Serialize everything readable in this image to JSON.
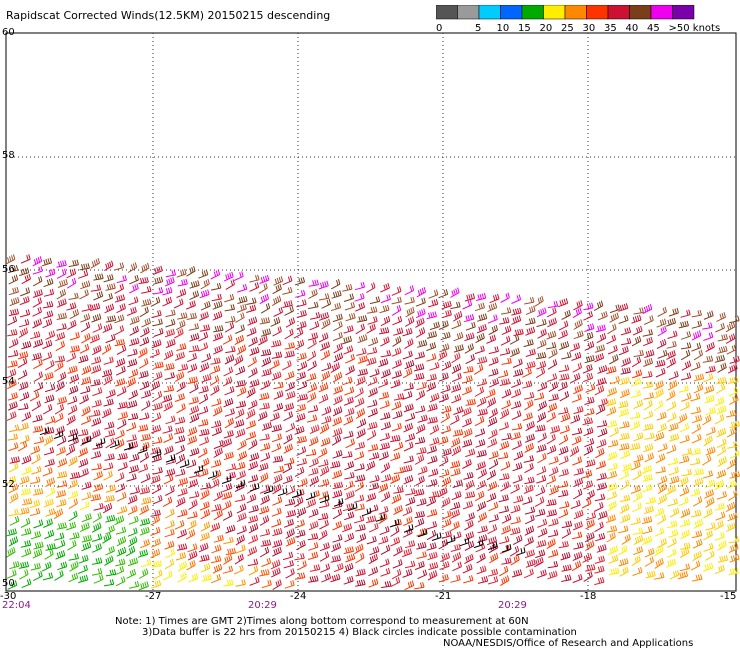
{
  "title": "Rapidscat Corrected Winds(12.5KM) 20150215 descending",
  "colorbar": {
    "labels": [
      "0",
      "5",
      "10",
      "15",
      "20",
      "25",
      "30",
      "35",
      "40",
      "45",
      ">50 knots"
    ],
    "colors": [
      "#555555",
      "#9a9a9a",
      "#00ccff",
      "#0066ff",
      "#00aa00",
      "#ffee00",
      "#ff8800",
      "#ff3300",
      "#cc1133",
      "#7a3e1a",
      "#ee00ee",
      "#7a00aa"
    ]
  },
  "axes": {
    "lat_labels": [
      "60",
      "58",
      "56",
      "54",
      "52",
      "50"
    ],
    "lon_labels": [
      "-30",
      "-27",
      "-24",
      "-21",
      "-18",
      "-15"
    ],
    "time_labels": [
      "22:04",
      "20:29",
      "20:29"
    ]
  },
  "notes": {
    "line1": "Note: 1) Times are GMT 2)Times along bottom correspond to measurement at 60N",
    "line2": "3)Data buffer is 22 hrs from 20150215 4) Black circles indicate possible contamination",
    "line3": "NOAA/NESDIS/Office of Research and Applications"
  }
}
